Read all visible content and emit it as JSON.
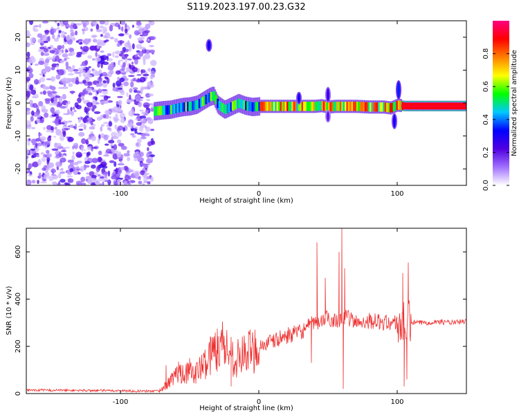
{
  "figure": {
    "title": "S119.2023.197.00.23.G32"
  },
  "chart_data": [
    {
      "type": "heatmap",
      "xlabel": "Height of straight line (km)",
      "ylabel": "Frequency (Hz)",
      "xlim": [
        -168,
        150
      ],
      "ylim": [
        -25,
        25
      ],
      "xticks": [
        -100,
        0,
        100
      ],
      "yticks": [
        -20,
        -10,
        0,
        10,
        20
      ],
      "colorbar": {
        "label": "Normalized spectral amplitude",
        "range": [
          0,
          1
        ],
        "ticks": [
          0.0,
          0.2,
          0.4,
          0.6,
          0.8
        ],
        "colormap": [
          "#ffffff",
          "#a070ff",
          "#5000e0",
          "#0000ff",
          "#00c8ff",
          "#00ff00",
          "#ffff00",
          "#ff8000",
          "#ff0000",
          "#ff0080"
        ]
      },
      "noise_region_x": [
        -168,
        -76
      ],
      "ridge": {
        "x": [
          -76,
          -70,
          -64,
          -60,
          -55,
          -50,
          -45,
          -40,
          -36,
          -33,
          -30,
          -25,
          -20,
          -15,
          -10,
          -5,
          0,
          10,
          20,
          30,
          40,
          45,
          50,
          55,
          60,
          70,
          80,
          90,
          95,
          100,
          105,
          120,
          150
        ],
        "y": [
          -2.5,
          -2.2,
          -2.0,
          -1.6,
          -1.2,
          -1.0,
          -0.5,
          0.8,
          1.8,
          2.3,
          -0.5,
          -2.0,
          -1.0,
          0.0,
          -0.8,
          -1.2,
          -1.0,
          -1.0,
          -1.0,
          -1.0,
          -1.0,
          -0.8,
          -1.2,
          -1.0,
          -1.0,
          -1.0,
          -1.2,
          -1.2,
          -1.5,
          -0.6,
          -0.9,
          -0.9,
          -0.9
        ]
      },
      "blobs": [
        {
          "x": -36,
          "y": 17.5,
          "w": 2.5,
          "h": 3.0,
          "amplitude": 0.3
        },
        {
          "x": 29,
          "y": 1.5,
          "w": 2,
          "h": 3,
          "amplitude": 0.3
        },
        {
          "x": 50,
          "y": 2.5,
          "w": 2,
          "h": 4,
          "amplitude": 0.25
        },
        {
          "x": 50,
          "y": -4,
          "w": 2,
          "h": 3,
          "amplitude": 0.2
        },
        {
          "x": 98,
          "y": -5.5,
          "w": 2,
          "h": 4,
          "amplitude": 0.3
        },
        {
          "x": 101,
          "y": 4.0,
          "w": 2,
          "h": 5,
          "amplitude": 0.35
        }
      ]
    },
    {
      "type": "line",
      "xlabel": "Height of straight line (km)",
      "ylabel": "SNR (10 * v/v)",
      "xlim": [
        -168,
        150
      ],
      "ylim": [
        0,
        700
      ],
      "xticks": [
        -100,
        0,
        100
      ],
      "yticks": [
        0,
        200,
        400,
        600
      ],
      "color": "#ee3030",
      "series": [
        {
          "x": [
            -168,
            -100,
            -80,
            -72,
            -66,
            -60,
            -55,
            -50,
            -45,
            -40,
            -35,
            -30,
            -25,
            -20,
            -15,
            -10,
            -5,
            0,
            5,
            10,
            20,
            30,
            40,
            45,
            50,
            55,
            60,
            65,
            70,
            80,
            90,
            100,
            105,
            110,
            120,
            130,
            140,
            150
          ],
          "y": [
            15,
            12,
            10,
            12,
            40,
            80,
            95,
            85,
            90,
            120,
            160,
            200,
            210,
            155,
            150,
            170,
            180,
            200,
            210,
            220,
            245,
            260,
            300,
            305,
            320,
            310,
            320,
            320,
            300,
            310,
            300,
            300,
            290,
            300,
            300,
            305,
            300,
            305
          ]
        }
      ],
      "spikes": [
        {
          "x": -67,
          "y": 120
        },
        {
          "x": -58,
          "y": 135
        },
        {
          "x": -50,
          "y": 150
        },
        {
          "x": -35,
          "y": 240
        },
        {
          "x": -30,
          "y": 275
        },
        {
          "x": -25,
          "y": 230
        },
        {
          "x": -20,
          "y": 240
        },
        {
          "x": 42,
          "y": 640
        },
        {
          "x": 48,
          "y": 490
        },
        {
          "x": 58,
          "y": 600
        },
        {
          "x": 60,
          "y": 700
        },
        {
          "x": 62,
          "y": 530
        },
        {
          "x": 104,
          "y": 510
        },
        {
          "x": 108,
          "y": 555
        }
      ],
      "dips": [
        {
          "x": -20,
          "y": 30
        },
        {
          "x": 38,
          "y": 130
        },
        {
          "x": 61,
          "y": 20
        },
        {
          "x": 105,
          "y": 30
        },
        {
          "x": 107,
          "y": 60
        }
      ]
    }
  ]
}
